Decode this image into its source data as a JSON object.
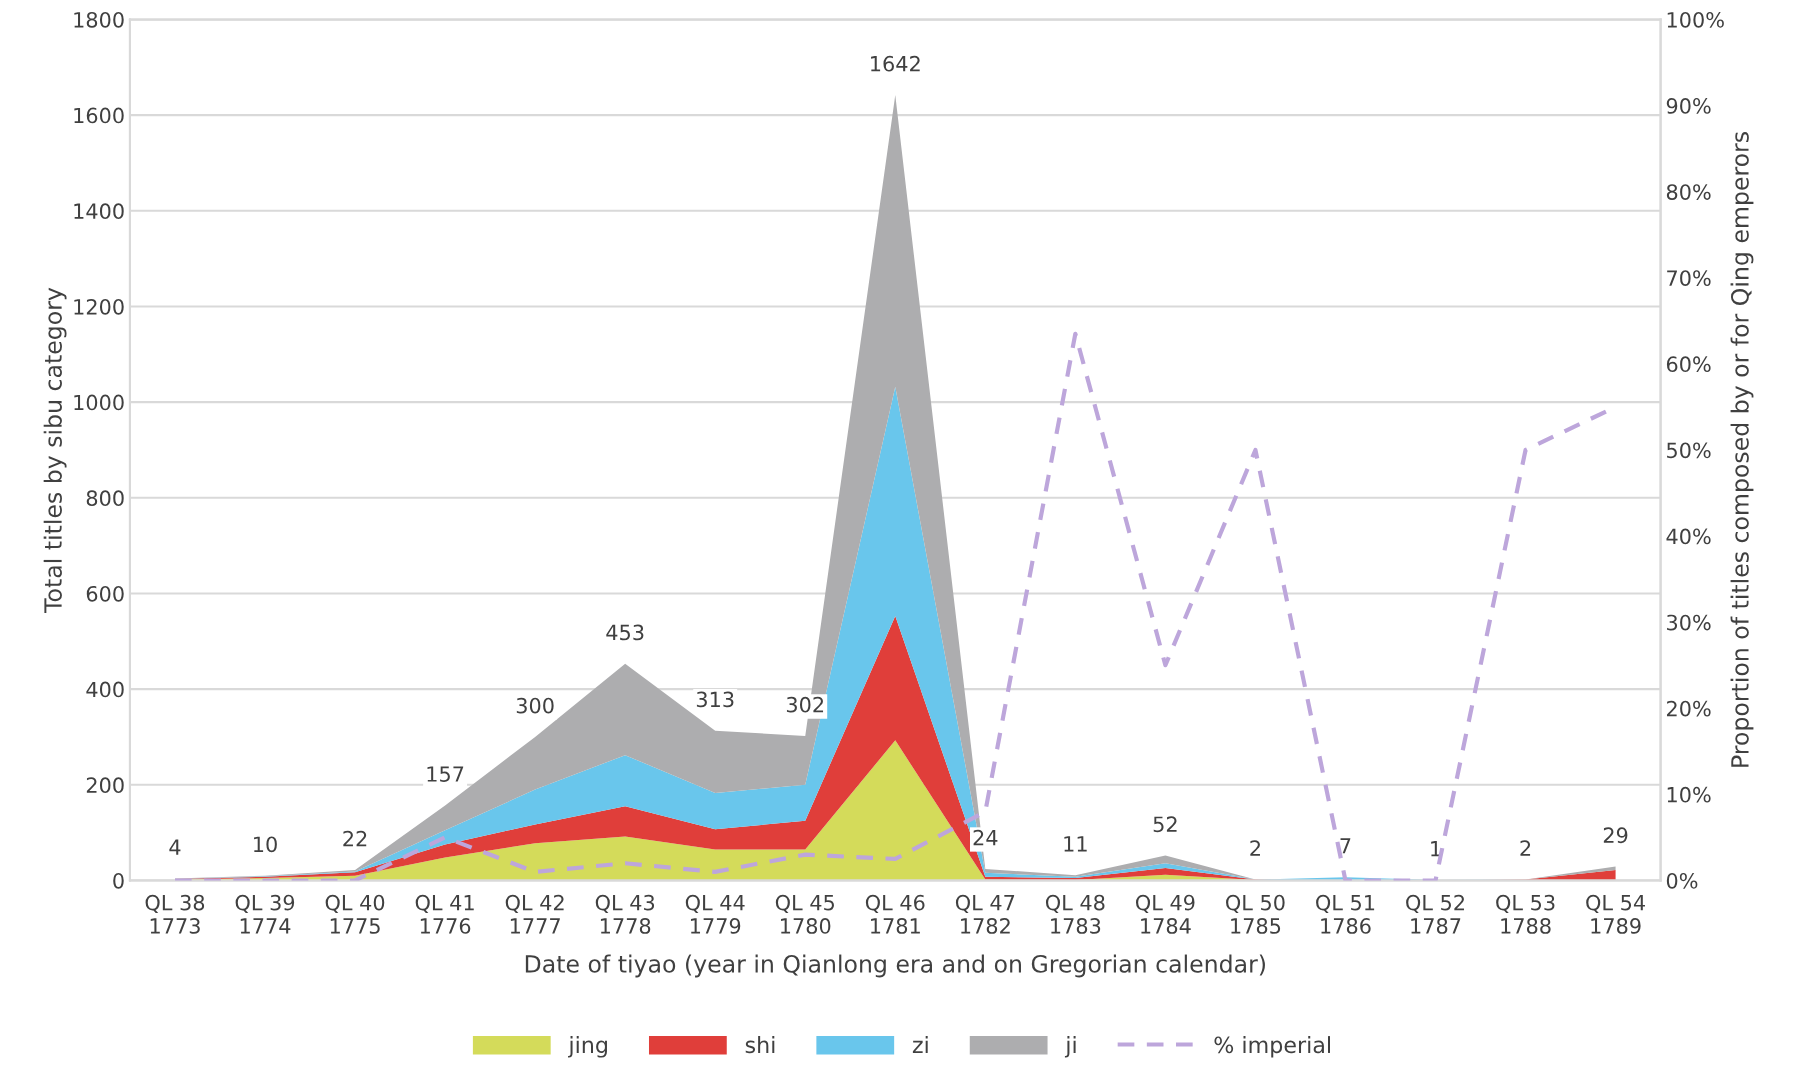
{
  "chart_data": {
    "type": "area",
    "stacked": true,
    "xlabel": "Date of tiyao (year in Qianlong era and on Gregorian calendar)",
    "ylabel": "Total titles by sibu category",
    "y2label": "Proportion of titles composed by or for Qing emperors",
    "categories": [
      "QL 38\n1773",
      "QL 39\n1774",
      "QL 40\n1775",
      "QL 41\n1776",
      "QL 42\n1777",
      "QL 43\n1778",
      "QL 44\n1779",
      "QL 45\n1780",
      "QL 46\n1781",
      "QL 47\n1782",
      "QL 48\n1783",
      "QL 49\n1784",
      "QL 50\n1785",
      "QL 51\n1786",
      "QL 52\n1787",
      "QL 53\n1788",
      "QL 54\n1789"
    ],
    "series": [
      {
        "name": "jing",
        "color": "#d4db5a",
        "values": [
          2,
          5,
          10,
          48,
          78,
          92,
          65,
          65,
          293,
          2,
          1,
          12,
          1,
          0,
          0,
          0,
          0
        ]
      },
      {
        "name": "shi",
        "color": "#e03e3a",
        "values": [
          1,
          3,
          7,
          27,
          39,
          63,
          42,
          60,
          260,
          6,
          4,
          14,
          1,
          0,
          0,
          2,
          22
        ]
      },
      {
        "name": "zi",
        "color": "#69c6ec",
        "values": [
          0,
          1,
          2,
          30,
          73,
          107,
          76,
          75,
          479,
          8,
          3,
          10,
          0,
          7,
          1,
          0,
          0
        ]
      },
      {
        "name": "ji",
        "color": "#adadaf",
        "values": [
          1,
          1,
          3,
          52,
          110,
          191,
          130,
          102,
          610,
          8,
          3,
          16,
          0,
          0,
          0,
          0,
          7
        ]
      },
      {
        "name": "% imperial",
        "type": "line",
        "axis": "y2",
        "color": "#bda6db",
        "line_style": "dashed",
        "marker": "none",
        "values": [
          0,
          0,
          0,
          5,
          1,
          2,
          1,
          3,
          2.5,
          8,
          63.5,
          25,
          50,
          0,
          0,
          50,
          55
        ]
      }
    ],
    "totals": [
      "4",
      "10",
      "22",
      "157",
      "300",
      "453",
      "313",
      "302",
      "1642",
      "24",
      "11",
      "52",
      "2",
      "7",
      "1",
      "2",
      "29"
    ],
    "ylim": [
      0,
      1800
    ],
    "yticks": [
      0,
      200,
      400,
      600,
      800,
      1000,
      1200,
      1400,
      1600,
      1800
    ],
    "y2lim": [
      0,
      100
    ],
    "y2ticks": [
      {
        "value": 0,
        "label": "0%"
      },
      {
        "value": 10,
        "label": "10%"
      },
      {
        "value": 20,
        "label": "20%"
      },
      {
        "value": 30,
        "label": "30%"
      },
      {
        "value": 40,
        "label": "40%"
      },
      {
        "value": 50,
        "label": "50%"
      },
      {
        "value": 60,
        "label": "60%"
      },
      {
        "value": 70,
        "label": "70%"
      },
      {
        "value": 80,
        "label": "80%"
      },
      {
        "value": 90,
        "label": "90%"
      },
      {
        "value": 100,
        "label": "100%"
      }
    ],
    "grid": "y",
    "legend": "bottom"
  }
}
